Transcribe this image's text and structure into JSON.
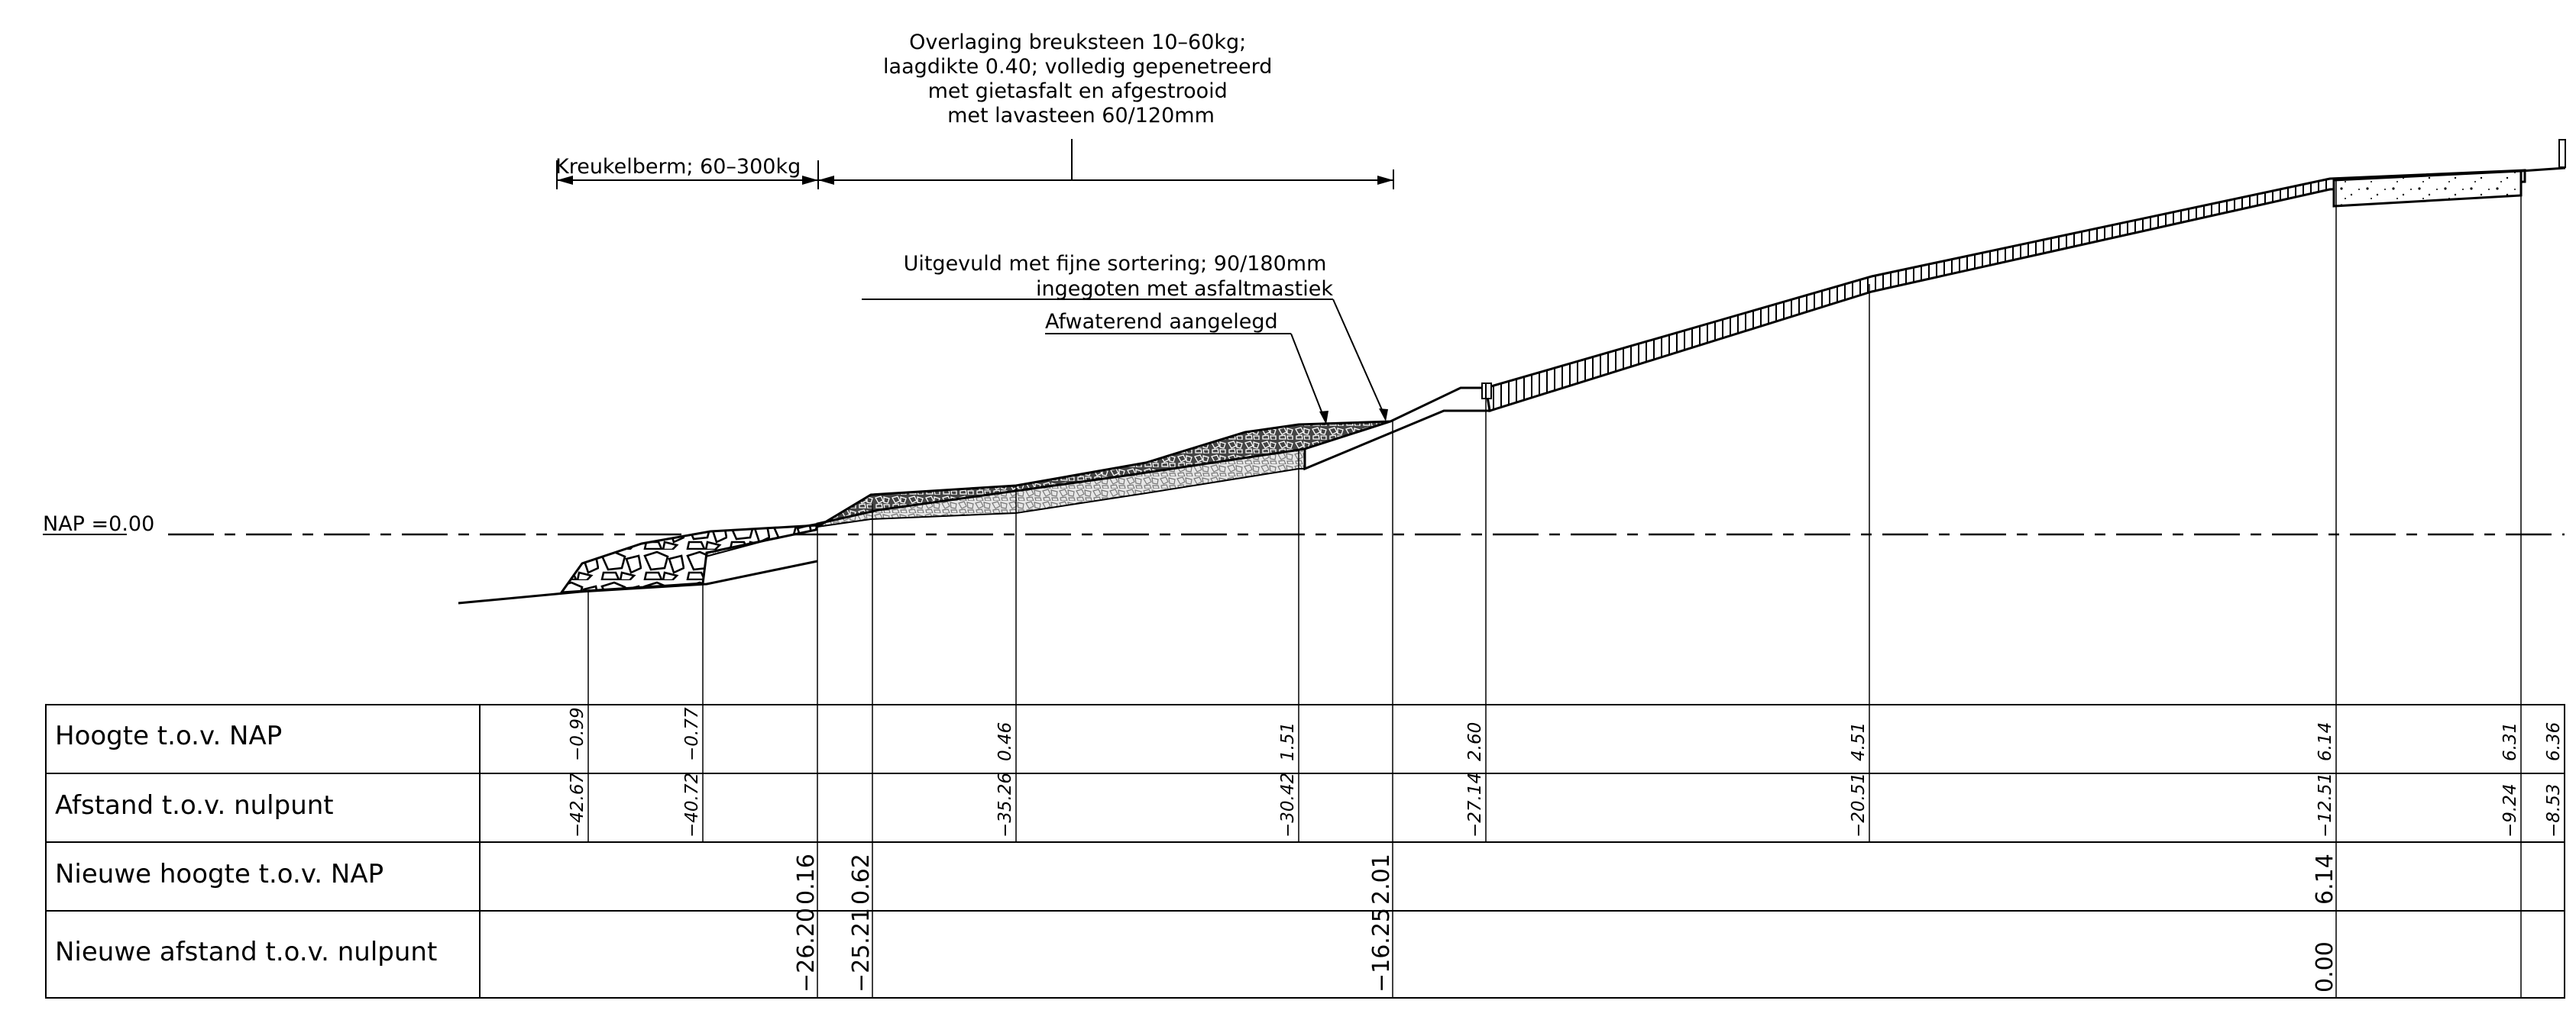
{
  "nap_label": "NAP =0.00",
  "annotations": {
    "top_note": [
      "Overlaging breuksteen 10–60kg;",
      "laagdikte 0.40; volledig gepenetreerd",
      "met gietasfalt en afgestrooid",
      "met lavasteen 60/120mm"
    ],
    "kreukelberm": "Kreukelberm; 60–300kg",
    "fill_note": [
      "Uitgevuld met fijne sortering; 90/180mm",
      "ingegoten met asfaltmastiek"
    ],
    "drain_note": "Afwaterend aangelegd"
  },
  "table": {
    "rows": [
      "Hoogte t.o.v. NAP",
      "Afstand t.o.v. nulpunt",
      "Nieuwe hoogte t.o.v. NAP",
      "Nieuwe afstand t.o.v. nulpunt"
    ],
    "old_points": [
      {
        "height": "−0.99",
        "dist": "−42.67"
      },
      {
        "height": "−0.77",
        "dist": "−40.72"
      },
      {
        "height": "0.46",
        "dist": "−35.26"
      },
      {
        "height": "1.51",
        "dist": "−30.42"
      },
      {
        "height": "2.60",
        "dist": "−27.14"
      },
      {
        "height": "4.51",
        "dist": "−20.51"
      },
      {
        "height": "6.14",
        "dist": "−12.51"
      },
      {
        "height": "6.31",
        "dist": "−9.24"
      },
      {
        "height": "6.36",
        "dist": "−8.53"
      }
    ],
    "new_points": [
      {
        "height": "0.16",
        "dist": "−26.20"
      },
      {
        "height": "0.62",
        "dist": "−25.21"
      },
      {
        "height": "2.01",
        "dist": "−16.25"
      },
      {
        "height": "6.14",
        "dist": "0.00"
      }
    ]
  }
}
